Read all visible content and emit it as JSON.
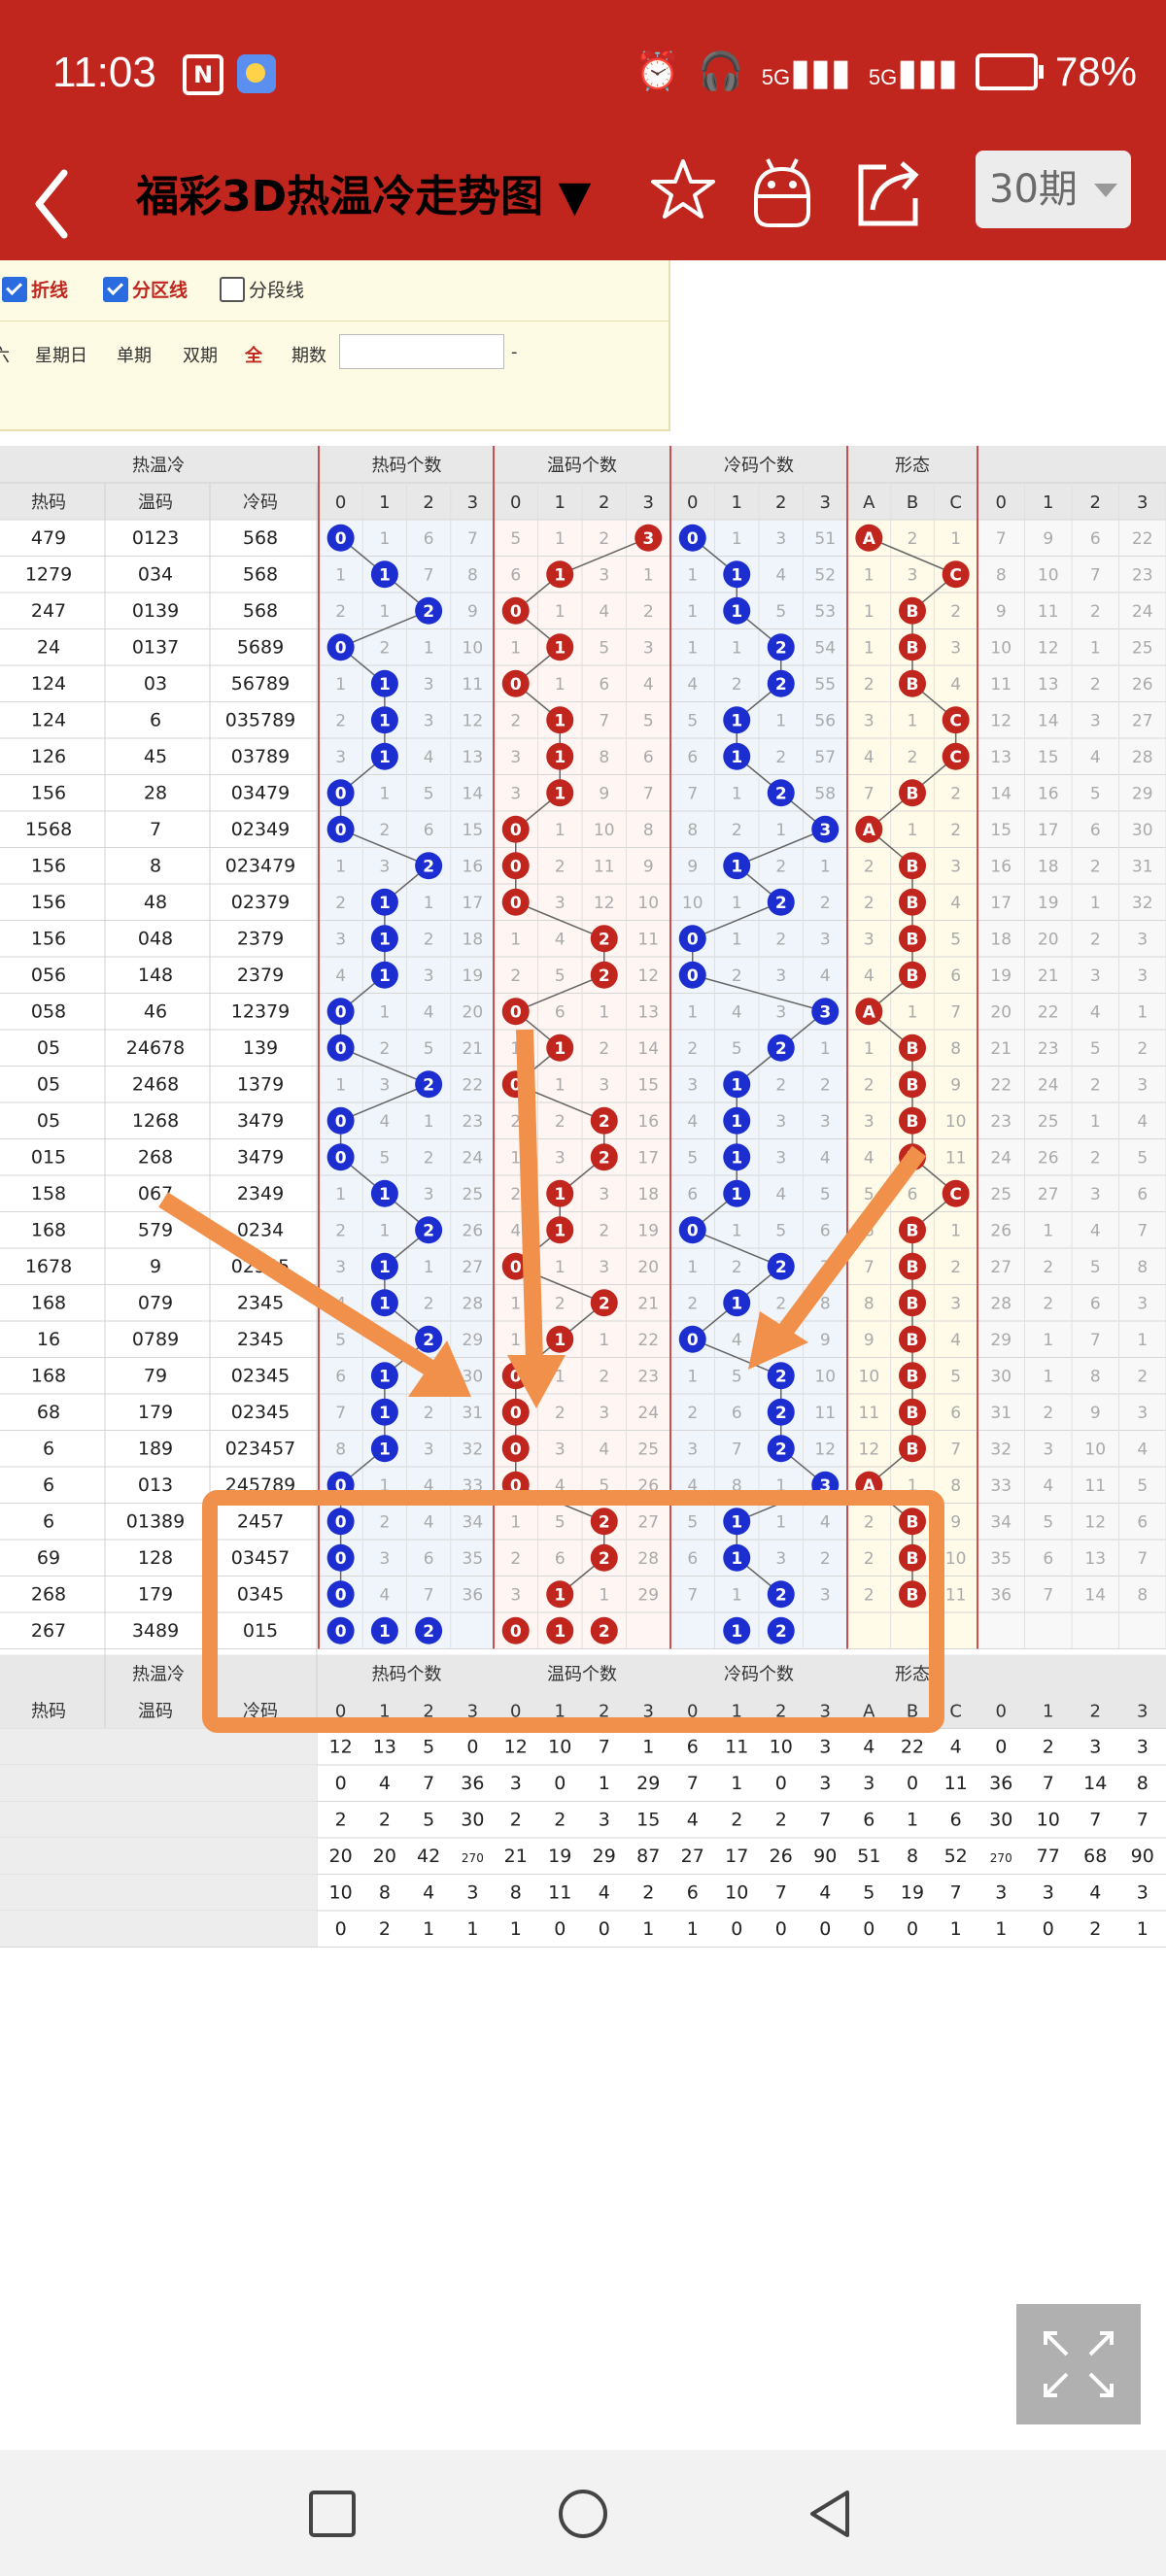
{
  "status_bar": {
    "time": "11:03",
    "nfc_icon": "N",
    "battery": "78%",
    "network": "5G"
  },
  "app_bar": {
    "title": "福彩3D热温冷走势图 ▼",
    "period": "30期"
  },
  "options": {
    "checkbox_1": "折线",
    "checkbox_2": "分区线",
    "checkbox_3": "分段线",
    "links": [
      "六",
      "星期日",
      "单期",
      "双期",
      "全",
      "期数"
    ],
    "input_value": "",
    "dash": "-"
  },
  "table": {
    "group_headers": [
      "热温冷",
      "热码个数",
      "温码个数",
      "冷码个数",
      "形态"
    ],
    "sub_headers": [
      "热码",
      "温码",
      "冷码"
    ],
    "digit_headers": [
      "0",
      "1",
      "2",
      "3"
    ],
    "shape_headers": [
      "A",
      "B",
      "C"
    ],
    "rows": [
      [
        "479",
        "0123",
        "568"
      ],
      [
        "1279",
        "034",
        "568"
      ],
      [
        "247",
        "0139",
        "568"
      ],
      [
        "24",
        "0137",
        "5689"
      ],
      [
        "124",
        "03",
        "56789"
      ],
      [
        "124",
        "6",
        "035789"
      ],
      [
        "126",
        "45",
        "03789"
      ],
      [
        "156",
        "28",
        "03479"
      ],
      [
        "1568",
        "7",
        "02349"
      ],
      [
        "156",
        "8",
        "023479"
      ],
      [
        "156",
        "48",
        "02379"
      ],
      [
        "156",
        "048",
        "2379"
      ],
      [
        "056",
        "148",
        "2379"
      ],
      [
        "058",
        "46",
        "12379"
      ],
      [
        "05",
        "24678",
        "139"
      ],
      [
        "05",
        "2468",
        "1379"
      ],
      [
        "05",
        "1268",
        "3479"
      ],
      [
        "015",
        "268",
        "3479"
      ],
      [
        "158",
        "067",
        "2349"
      ],
      [
        "168",
        "579",
        "0234"
      ],
      [
        "1678",
        "9",
        "02345"
      ],
      [
        "168",
        "079",
        "2345"
      ],
      [
        "16",
        "0789",
        "2345"
      ],
      [
        "168",
        "79",
        "02345"
      ],
      [
        "68",
        "179",
        "02345"
      ],
      [
        "6",
        "189",
        "023457"
      ],
      [
        "6",
        "013",
        "245789"
      ],
      [
        "6",
        "01389",
        "2457"
      ],
      [
        "69",
        "128",
        "03457"
      ],
      [
        "268",
        "179",
        "0345"
      ],
      [
        "267",
        "3489",
        "015"
      ]
    ],
    "hot_ball": [
      0,
      1,
      2,
      0,
      1,
      1,
      1,
      0,
      0,
      2,
      1,
      1,
      1,
      0,
      0,
      2,
      0,
      0,
      1,
      2,
      1,
      1,
      2,
      1,
      1,
      1,
      0,
      0,
      0,
      0,
      null
    ],
    "warm_ball": [
      3,
      1,
      0,
      1,
      0,
      1,
      1,
      1,
      0,
      0,
      0,
      2,
      2,
      0,
      1,
      0,
      2,
      2,
      1,
      1,
      0,
      2,
      1,
      0,
      0,
      0,
      0,
      2,
      2,
      1,
      null
    ],
    "cold_ball": [
      0,
      1,
      1,
      2,
      2,
      1,
      1,
      2,
      3,
      1,
      2,
      0,
      0,
      3,
      2,
      1,
      1,
      1,
      1,
      0,
      2,
      1,
      0,
      2,
      2,
      2,
      3,
      1,
      1,
      2,
      null
    ],
    "shape_ball": [
      "A",
      "C",
      "B",
      "B",
      "B",
      "C",
      "C",
      "B",
      "A",
      "B",
      "B",
      "B",
      "B",
      "A",
      "B",
      "B",
      "B",
      "B",
      "C",
      "B",
      "B",
      "B",
      "B",
      "B",
      "B",
      "B",
      "A",
      "B",
      "B",
      "B",
      null
    ],
    "hot_nums": [
      [
        0,
        1,
        6,
        7
      ],
      [
        1,
        1,
        7,
        8
      ],
      [
        2,
        1,
        2,
        9
      ],
      [
        0,
        2,
        1,
        10
      ],
      [
        1,
        1,
        3,
        11
      ],
      [
        2,
        1,
        3,
        12
      ],
      [
        3,
        1,
        4,
        13
      ],
      [
        0,
        1,
        5,
        14
      ],
      [
        0,
        2,
        6,
        15
      ],
      [
        1,
        3,
        2,
        16
      ],
      [
        2,
        1,
        1,
        17
      ],
      [
        3,
        1,
        2,
        18
      ],
      [
        4,
        1,
        3,
        19
      ],
      [
        0,
        1,
        4,
        20
      ],
      [
        0,
        2,
        5,
        21
      ],
      [
        1,
        3,
        2,
        22
      ],
      [
        0,
        4,
        1,
        23
      ],
      [
        0,
        5,
        2,
        24
      ],
      [
        1,
        1,
        3,
        25
      ],
      [
        2,
        1,
        2,
        26
      ],
      [
        3,
        1,
        1,
        27
      ],
      [
        4,
        1,
        2,
        28
      ],
      [
        5,
        1,
        2,
        29
      ],
      [
        6,
        1,
        1,
        30
      ],
      [
        7,
        1,
        2,
        31
      ],
      [
        8,
        1,
        3,
        32
      ],
      [
        0,
        1,
        4,
        33
      ],
      [
        0,
        2,
        4,
        34
      ],
      [
        0,
        3,
        6,
        35
      ],
      [
        0,
        4,
        7,
        36
      ],
      [
        null,
        null,
        null,
        null
      ]
    ],
    "warm_nums": [
      [
        5,
        1,
        2,
        3
      ],
      [
        6,
        1,
        3,
        1
      ],
      [
        1,
        1,
        4,
        2
      ],
      [
        1,
        1,
        5,
        3
      ],
      [
        1,
        1,
        6,
        4
      ],
      [
        2,
        1,
        7,
        5
      ],
      [
        3,
        1,
        8,
        6
      ],
      [
        3,
        1,
        9,
        7
      ],
      [
        1,
        1,
        10,
        8
      ],
      [
        1,
        2,
        11,
        9
      ],
      [
        1,
        3,
        12,
        10
      ],
      [
        1,
        4,
        2,
        11
      ],
      [
        2,
        5,
        2,
        12
      ],
      [
        1,
        6,
        1,
        13
      ],
      [
        1,
        1,
        2,
        14
      ],
      [
        1,
        1,
        3,
        15
      ],
      [
        2,
        2,
        2,
        16
      ],
      [
        1,
        3,
        2,
        17
      ],
      [
        2,
        1,
        3,
        18
      ],
      [
        4,
        1,
        2,
        19
      ],
      [
        1,
        1,
        3,
        20
      ],
      [
        1,
        2,
        2,
        21
      ],
      [
        1,
        1,
        1,
        22
      ],
      [
        1,
        1,
        2,
        23
      ],
      [
        1,
        2,
        3,
        24
      ],
      [
        1,
        3,
        4,
        25
      ],
      [
        1,
        4,
        5,
        26
      ],
      [
        1,
        5,
        2,
        27
      ],
      [
        2,
        6,
        2,
        28
      ],
      [
        3,
        1,
        1,
        29
      ],
      [
        null,
        null,
        null,
        null
      ]
    ],
    "cold_nums": [
      [
        1,
        1,
        3,
        51
      ],
      [
        1,
        1,
        4,
        52
      ],
      [
        1,
        1,
        5,
        53
      ],
      [
        1,
        1,
        2,
        54
      ],
      [
        4,
        2,
        2,
        55
      ],
      [
        5,
        1,
        1,
        56
      ],
      [
        6,
        1,
        2,
        57
      ],
      [
        7,
        1,
        2,
        58
      ],
      [
        8,
        2,
        1,
        3
      ],
      [
        9,
        1,
        2,
        1
      ],
      [
        10,
        1,
        2,
        2
      ],
      [
        1,
        1,
        2,
        3
      ],
      [
        1,
        2,
        3,
        4
      ],
      [
        1,
        4,
        3,
        3
      ],
      [
        2,
        5,
        2,
        1
      ],
      [
        3,
        1,
        2,
        2
      ],
      [
        4,
        1,
        3,
        3
      ],
      [
        5,
        1,
        3,
        4
      ],
      [
        6,
        1,
        4,
        5
      ],
      [
        1,
        1,
        5,
        6
      ],
      [
        1,
        2,
        2,
        7
      ],
      [
        2,
        3,
        2,
        8
      ],
      [
        1,
        4,
        1,
        9
      ],
      [
        1,
        5,
        2,
        10
      ],
      [
        2,
        6,
        2,
        11
      ],
      [
        3,
        7,
        2,
        12
      ],
      [
        4,
        8,
        1,
        3
      ],
      [
        5,
        1,
        1,
        4
      ],
      [
        6,
        1,
        3,
        2
      ],
      [
        7,
        1,
        2,
        3
      ],
      [
        null,
        null,
        null,
        null
      ]
    ],
    "shape_nums": [
      [
        1,
        2,
        1
      ],
      [
        1,
        3,
        1
      ],
      [
        1,
        1,
        2
      ],
      [
        1,
        1,
        3
      ],
      [
        2,
        1,
        4
      ],
      [
        3,
        1,
        1
      ],
      [
        4,
        2,
        1
      ],
      [
        7,
        1,
        2
      ],
      [
        1,
        1,
        2
      ],
      [
        2,
        1,
        3
      ],
      [
        2,
        1,
        4
      ],
      [
        3,
        1,
        5
      ],
      [
        4,
        1,
        6
      ],
      [
        1,
        1,
        7
      ],
      [
        1,
        1,
        8
      ],
      [
        2,
        1,
        9
      ],
      [
        3,
        1,
        10
      ],
      [
        4,
        1,
        11
      ],
      [
        5,
        6,
        1
      ],
      [
        6,
        1,
        1
      ],
      [
        7,
        1,
        2
      ],
      [
        8,
        1,
        3
      ],
      [
        9,
        1,
        4
      ],
      [
        10,
        1,
        5
      ],
      [
        11,
        1,
        6
      ],
      [
        12,
        1,
        7
      ],
      [
        1,
        1,
        8
      ],
      [
        2,
        1,
        9
      ],
      [
        2,
        1,
        10
      ],
      [
        2,
        1,
        11
      ],
      [
        null,
        null,
        null
      ]
    ],
    "extra_nums": [
      [
        7,
        9,
        6,
        22
      ],
      [
        8,
        10,
        7,
        23
      ],
      [
        9,
        11,
        2,
        24
      ],
      [
        10,
        12,
        1,
        25
      ],
      [
        11,
        13,
        2,
        26
      ],
      [
        12,
        14,
        3,
        27
      ],
      [
        13,
        15,
        4,
        28
      ],
      [
        14,
        16,
        5,
        29
      ],
      [
        15,
        17,
        6,
        30
      ],
      [
        16,
        18,
        2,
        31
      ],
      [
        17,
        19,
        1,
        32
      ],
      [
        18,
        20,
        2,
        3
      ],
      [
        19,
        21,
        3,
        3
      ],
      [
        20,
        22,
        4,
        1
      ],
      [
        21,
        23,
        5,
        2
      ],
      [
        22,
        24,
        2,
        3
      ],
      [
        23,
        25,
        1,
        4
      ],
      [
        24,
        26,
        2,
        5
      ],
      [
        25,
        27,
        3,
        6
      ],
      [
        26,
        1,
        4,
        7
      ],
      [
        27,
        2,
        5,
        8
      ],
      [
        28,
        2,
        6,
        3
      ],
      [
        29,
        1,
        7,
        1
      ],
      [
        30,
        1,
        8,
        2
      ],
      [
        31,
        2,
        9,
        3
      ],
      [
        32,
        3,
        10,
        4
      ],
      [
        33,
        4,
        11,
        5
      ],
      [
        34,
        5,
        12,
        6
      ],
      [
        35,
        6,
        13,
        7
      ],
      [
        36,
        7,
        14,
        8
      ],
      [
        null,
        null,
        null,
        null
      ]
    ],
    "stat_rows": [
      [
        "12",
        "13",
        "5",
        "0",
        "12",
        "10",
        "7",
        "1",
        "6",
        "11",
        "10",
        "3",
        "4",
        "22",
        "4",
        "0",
        "2",
        "3",
        "3"
      ],
      [
        "0",
        "4",
        "7",
        "36",
        "3",
        "0",
        "1",
        "29",
        "7",
        "1",
        "0",
        "3",
        "3",
        "0",
        "11",
        "36",
        "7",
        "14",
        "8"
      ],
      [
        "2",
        "2",
        "5",
        "30",
        "2",
        "2",
        "3",
        "15",
        "4",
        "2",
        "2",
        "7",
        "6",
        "1",
        "6",
        "30",
        "10",
        "7",
        "7"
      ],
      [
        "20",
        "20",
        "42",
        "270",
        "21",
        "19",
        "29",
        "87",
        "27",
        "17",
        "26",
        "90",
        "51",
        "8",
        "52",
        "270",
        "77",
        "68",
        "90"
      ],
      [
        "10",
        "8",
        "4",
        "3",
        "8",
        "11",
        "4",
        "2",
        "6",
        "10",
        "7",
        "4",
        "5",
        "19",
        "7",
        "3",
        "3",
        "4",
        "3"
      ],
      [
        "0",
        "2",
        "1",
        "1",
        "1",
        "0",
        "0",
        "1",
        "1",
        "0",
        "0",
        "0",
        "0",
        "0",
        "1",
        "1",
        "0",
        "2",
        "1"
      ]
    ]
  },
  "colors": {
    "brand": "#c0251e",
    "hot_ball": "#1c2ed0",
    "warm_ball": "#c0251e",
    "annotation": "#f0904a"
  },
  "icons": [
    "back-icon",
    "star-icon",
    "android-icon",
    "share-icon",
    "fullscreen-icon",
    "square-nav-icon",
    "circle-nav-icon",
    "triangle-nav-icon"
  ]
}
